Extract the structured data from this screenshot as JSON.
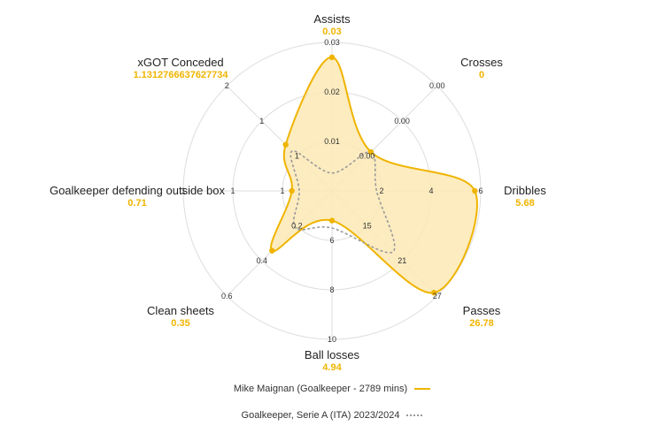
{
  "colors": {
    "player": "#f0b400",
    "player_fill": "#fbe9b5",
    "average": "#999999",
    "grid": "#dddddd"
  },
  "chart_data": {
    "type": "radar",
    "grid": true,
    "legend_placement": "bottom-center",
    "axes": [
      {
        "name": "Assists",
        "value": "0.03",
        "ticks": [
          "0.01",
          "0.02",
          "0.03"
        ],
        "max": 0.03
      },
      {
        "name": "Crosses",
        "value": "0",
        "ticks": [
          "0.00",
          "0.00",
          "0.00"
        ],
        "max": 0.0
      },
      {
        "name": "Dribbles",
        "value": "5.68",
        "ticks": [
          "2",
          "4",
          "6"
        ],
        "max": 6
      },
      {
        "name": "Passes",
        "value": "26.78",
        "ticks": [
          "15",
          "21",
          "27"
        ],
        "min": 9,
        "max": 27
      },
      {
        "name": "Ball losses",
        "value": "4.94",
        "ticks": [
          "6",
          "8",
          "10"
        ],
        "min": 4,
        "max": 10
      },
      {
        "name": "Clean sheets",
        "value": "0.35",
        "ticks": [
          "0.2",
          "0.4",
          "0.6"
        ],
        "max": 0.6
      },
      {
        "name": "Goalkeeper defending outside box",
        "value": "0.71",
        "ticks": [
          "1",
          "1",
          "1"
        ],
        "max": 1
      },
      {
        "name": "xGOT Conceded",
        "value": "1.1312766637627734",
        "ticks": [
          "1",
          "1",
          "2"
        ],
        "max": 2
      }
    ],
    "series": [
      {
        "name": "Mike Maignan (Goalkeeper - 2789 mins)",
        "values_fraction": [
          0.9,
          0.37,
          0.96,
          0.97,
          0.2,
          0.57,
          0.27,
          0.44
        ]
      },
      {
        "name": "Goalkeeper, Serie A (ITA) 2023/2024",
        "values_fraction": [
          0.12,
          0.37,
          0.3,
          0.58,
          0.25,
          0.35,
          0.22,
          0.38
        ]
      }
    ]
  },
  "legend": {
    "player_label": "Mike Maignan (Goalkeeper - 2789 mins)",
    "average_label": "Goalkeeper, Serie A (ITA) 2023/2024"
  }
}
